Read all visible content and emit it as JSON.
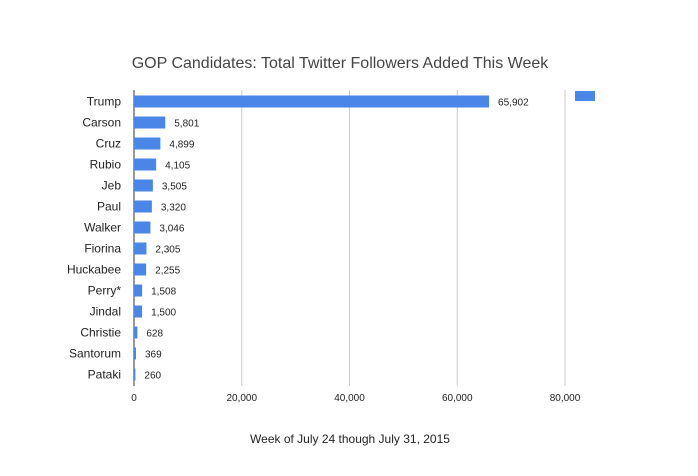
{
  "chart_data": {
    "type": "bar",
    "orientation": "horizontal",
    "title": "GOP Candidates: Total Twitter Followers Added This Week",
    "xlabel": "Week of July 24 though July 31, 2015",
    "ylabel": "",
    "categories": [
      "Trump",
      "Carson",
      "Cruz",
      "Rubio",
      "Jeb",
      "Paul",
      "Walker",
      "Fiorina",
      "Huckabee",
      "Perry*",
      "Jindal",
      "Christie",
      "Santorum",
      "Pataki"
    ],
    "values": [
      65902,
      5801,
      4899,
      4105,
      3505,
      3320,
      3046,
      2305,
      2255,
      1508,
      1500,
      628,
      369,
      260
    ],
    "value_labels": [
      "65,902",
      "5,801",
      "4,899",
      "4,105",
      "3,505",
      "3,320",
      "3,046",
      "2,305",
      "2,255",
      "1,508",
      "1,500",
      "628",
      "369",
      "260"
    ],
    "xlim": [
      0,
      80000
    ],
    "xticks": [
      0,
      20000,
      40000,
      60000,
      80000
    ],
    "xtick_labels": [
      "0",
      "20,000",
      "40,000",
      "60,000",
      "80,000"
    ],
    "grid": true,
    "legend": "top-right",
    "legend_entries": [
      ""
    ],
    "bar_color": "#4a86e8"
  }
}
